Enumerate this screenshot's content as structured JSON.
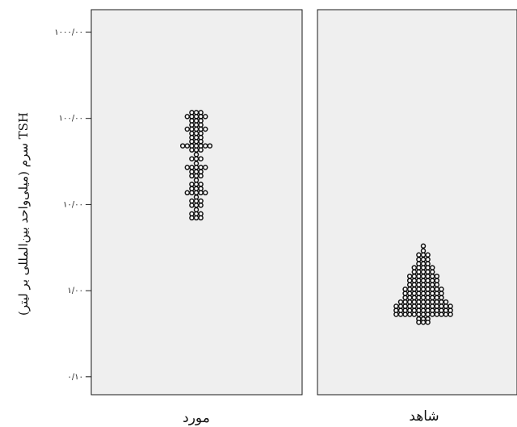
{
  "chart_data": {
    "type": "dot-plot",
    "ylabel": "TSH سرم (میلی‌واحد بین‌المللی بر لیتر)",
    "yscale": "log",
    "ylim": [
      0.07,
      2000
    ],
    "yticks": [
      {
        "value": 0.1,
        "label": "۰/۱۰"
      },
      {
        "value": 1,
        "label": "۱/۰۰"
      },
      {
        "value": 10,
        "label": "۱۰/۰۰"
      },
      {
        "value": 100,
        "label": "۱۰۰/۰۰"
      },
      {
        "value": 1000,
        "label": "۱۰۰۰/۰۰"
      }
    ],
    "categories": [
      "مورد",
      "شاهد"
    ],
    "series": [
      {
        "category": "مورد",
        "bins": [
          {
            "y": 117,
            "count": 3
          },
          {
            "y": 105,
            "count": 5
          },
          {
            "y": 94,
            "count": 3
          },
          {
            "y": 84,
            "count": 3
          },
          {
            "y": 75,
            "count": 5
          },
          {
            "y": 67,
            "count": 3
          },
          {
            "y": 60,
            "count": 3
          },
          {
            "y": 54,
            "count": 3
          },
          {
            "y": 48,
            "count": 7
          },
          {
            "y": 43,
            "count": 3
          },
          {
            "y": 38,
            "count": 1
          },
          {
            "y": 34,
            "count": 3
          },
          {
            "y": 30,
            "count": 1
          },
          {
            "y": 27,
            "count": 5
          },
          {
            "y": 24,
            "count": 3
          },
          {
            "y": 21.5,
            "count": 3
          },
          {
            "y": 19.2,
            "count": 1
          },
          {
            "y": 17.2,
            "count": 3
          },
          {
            "y": 15.3,
            "count": 3
          },
          {
            "y": 13.7,
            "count": 5
          },
          {
            "y": 12.2,
            "count": 1
          },
          {
            "y": 11,
            "count": 3
          },
          {
            "y": 9.8,
            "count": 3
          },
          {
            "y": 8.7,
            "count": 1
          },
          {
            "y": 7.8,
            "count": 3
          },
          {
            "y": 7.0,
            "count": 3
          }
        ]
      },
      {
        "category": "شاهد",
        "bins": [
          {
            "y": 3.3,
            "count": 1
          },
          {
            "y": 2.9,
            "count": 1
          },
          {
            "y": 2.6,
            "count": 3
          },
          {
            "y": 2.3,
            "count": 3
          },
          {
            "y": 2.05,
            "count": 3
          },
          {
            "y": 1.85,
            "count": 5
          },
          {
            "y": 1.65,
            "count": 5
          },
          {
            "y": 1.47,
            "count": 7
          },
          {
            "y": 1.31,
            "count": 7
          },
          {
            "y": 1.17,
            "count": 7
          },
          {
            "y": 1.04,
            "count": 9
          },
          {
            "y": 0.93,
            "count": 9
          },
          {
            "y": 0.83,
            "count": 9
          },
          {
            "y": 0.74,
            "count": 11
          },
          {
            "y": 0.66,
            "count": 13
          },
          {
            "y": 0.59,
            "count": 13
          },
          {
            "y": 0.53,
            "count": 13
          },
          {
            "y": 0.47,
            "count": 3
          },
          {
            "y": 0.43,
            "count": 3
          }
        ]
      }
    ],
    "grid": false,
    "legend": "none"
  }
}
